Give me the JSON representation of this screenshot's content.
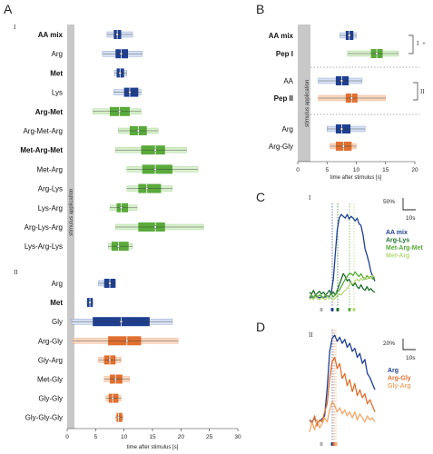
{
  "colors": {
    "blue": "#1f3f8f",
    "blue_light": "#d6e2f5",
    "green": "#5aaa3c",
    "green_light": "#d8f0cc",
    "orange": "#e07030",
    "orange_light": "#fad8c0",
    "stim": "#c8c8c8"
  },
  "panel_letters": [
    "A",
    "B",
    "C",
    "D"
  ],
  "chart_data": [
    {
      "id": "A",
      "type": "box",
      "section_I_label": "I",
      "section_II_label": "II",
      "stimulus_label": "stimulus application",
      "xlabel": "time after stimulus [s]",
      "xlim": [
        0,
        30
      ],
      "xticks": [
        "0",
        "5",
        "10",
        "15",
        "20",
        "25",
        "30"
      ],
      "rows": [
        {
          "label": "AA mix",
          "bold": true,
          "color": "blue",
          "section": "I",
          "median": 8.8,
          "q1": 8.2,
          "q3": 9.5,
          "wlo": 7.0,
          "whi": 11.5
        },
        {
          "label": "Arg",
          "bold": false,
          "color": "blue",
          "section": "I",
          "median": 9.5,
          "q1": 8.5,
          "q3": 10.7,
          "wlo": 6.2,
          "whi": 13.2
        },
        {
          "label": "Met",
          "bold": true,
          "color": "blue",
          "section": "I",
          "median": 9.3,
          "q1": 8.7,
          "q3": 10.0,
          "wlo": 8.3,
          "whi": 10.5
        },
        {
          "label": "Lys",
          "bold": false,
          "color": "blue",
          "section": "I",
          "median": 11.0,
          "q1": 10.0,
          "q3": 12.5,
          "wlo": 8.2,
          "whi": 13.0
        },
        {
          "label": "Arg-Met",
          "bold": true,
          "color": "green",
          "section": "I",
          "median": 9.2,
          "q1": 7.5,
          "q3": 11.0,
          "wlo": 4.5,
          "whi": 13.0
        },
        {
          "label": "Arg-Met-Arg",
          "bold": false,
          "color": "green",
          "section": "I",
          "median": 12.5,
          "q1": 11.0,
          "q3": 14.0,
          "wlo": 9.0,
          "whi": 16.0
        },
        {
          "label": "Met-Arg-Met",
          "bold": true,
          "color": "green",
          "section": "I",
          "median": 15.5,
          "q1": 13.0,
          "q3": 17.2,
          "wlo": 8.5,
          "whi": 21.0
        },
        {
          "label": "Met-Arg",
          "bold": false,
          "color": "green",
          "section": "I",
          "median": 15.5,
          "q1": 13.2,
          "q3": 18.5,
          "wlo": 10.5,
          "whi": 23.0
        },
        {
          "label": "Arg-Lys",
          "bold": false,
          "color": "green",
          "section": "I",
          "median": 14.0,
          "q1": 12.5,
          "q3": 16.5,
          "wlo": 10.5,
          "whi": 18.5
        },
        {
          "label": "Lys-Arg",
          "bold": false,
          "color": "green",
          "section": "I",
          "median": 9.5,
          "q1": 8.7,
          "q3": 10.7,
          "wlo": 7.5,
          "whi": 12.3
        },
        {
          "label": "Arg-Lys-Arg",
          "bold": false,
          "color": "green",
          "section": "I",
          "median": 15.5,
          "q1": 12.5,
          "q3": 17.2,
          "wlo": 8.5,
          "whi": 24.0
        },
        {
          "label": "Lys-Arg-Lys",
          "bold": false,
          "color": "green",
          "section": "I",
          "median": 9.0,
          "q1": 7.8,
          "q3": 10.8,
          "wlo": 7.2,
          "whi": 11.5
        },
        {
          "label": "Arg",
          "bold": false,
          "color": "blue",
          "section": "II",
          "median": 7.5,
          "q1": 6.5,
          "q3": 8.5,
          "wlo": 5.5,
          "whi": 8.5
        },
        {
          "label": "Met",
          "bold": true,
          "color": "blue",
          "section": "II",
          "median": 4.0,
          "q1": 3.5,
          "q3": 4.5,
          "wlo": 3.5,
          "whi": 4.5
        },
        {
          "label": "Gly",
          "bold": false,
          "color": "blue",
          "section": "II",
          "median": 9.5,
          "q1": 4.5,
          "q3": 14.5,
          "wlo": 0.8,
          "whi": 18.5
        },
        {
          "label": "Arg-Gly",
          "bold": false,
          "color": "orange",
          "section": "II",
          "median": 10.5,
          "q1": 7.2,
          "q3": 13.0,
          "wlo": 1.0,
          "whi": 19.5
        },
        {
          "label": "Gly-Arg",
          "bold": false,
          "color": "orange",
          "section": "II",
          "median": 7.5,
          "q1": 6.5,
          "q3": 8.5,
          "wlo": 5.5,
          "whi": 9.5
        },
        {
          "label": "Met-Gly",
          "bold": false,
          "color": "orange",
          "section": "II",
          "median": 8.5,
          "q1": 7.5,
          "q3": 9.7,
          "wlo": 6.5,
          "whi": 11.0
        },
        {
          "label": "Gly-Gly",
          "bold": false,
          "color": "orange",
          "section": "II",
          "median": 8.0,
          "q1": 7.3,
          "q3": 9.0,
          "wlo": 6.8,
          "whi": 9.5
        },
        {
          "label": "Gly-Gly-Gly",
          "bold": false,
          "color": "orange",
          "section": "II",
          "median": 9.0,
          "q1": 8.7,
          "q3": 9.7,
          "wlo": 8.5,
          "whi": 9.8
        }
      ]
    },
    {
      "id": "B",
      "type": "box",
      "stimulus_label": "stimulus application",
      "xlabel": "time after stimulus [s]",
      "xlim": [
        0,
        20
      ],
      "xticks": [
        "0",
        "5",
        "10",
        "15",
        "20"
      ],
      "bracket_labels": [
        "I",
        "+",
        "II"
      ],
      "rows": [
        {
          "label": "AA mix",
          "bold": true,
          "color": "blue",
          "median": 8.8,
          "q1": 8.2,
          "q3": 9.5,
          "wlo": 7.2,
          "whi": 10.0
        },
        {
          "label": "Pep I",
          "bold": true,
          "color": "green",
          "median": 13.5,
          "q1": 12.5,
          "q3": 14.5,
          "wlo": 8.5,
          "whi": 17.2
        },
        {
          "label": "AA",
          "bold": false,
          "color": "blue",
          "median": 7.5,
          "q1": 6.5,
          "q3": 8.7,
          "wlo": 3.5,
          "whi": 11.0
        },
        {
          "label": "Pep II",
          "bold": true,
          "color": "orange",
          "median": 9.2,
          "q1": 8.2,
          "q3": 10.2,
          "wlo": 3.5,
          "whi": 15.0
        },
        {
          "label": "Arg",
          "bold": false,
          "color": "blue",
          "median": 7.5,
          "q1": 6.5,
          "q3": 9.0,
          "wlo": 5.0,
          "whi": 11.5
        },
        {
          "label": "Arg-Gly",
          "bold": false,
          "color": "orange",
          "median": 7.8,
          "q1": 6.5,
          "q3": 9.2,
          "wlo": 5.5,
          "whi": 10.0
        }
      ]
    },
    {
      "id": "C",
      "type": "line",
      "section_label": "I",
      "scale_y": "50%",
      "scale_x": "10s",
      "series": [
        {
          "name": "AA mix",
          "color": "#1f3f8f",
          "y": [
            2,
            3,
            2,
            4,
            3,
            2,
            3,
            2,
            3,
            4,
            3,
            8,
            22,
            50,
            75,
            88,
            92,
            90,
            88,
            92,
            87,
            90,
            88,
            85,
            88,
            82,
            80,
            70,
            55,
            48,
            40,
            30,
            25,
            20
          ]
        },
        {
          "name": "Arg-Lys",
          "color": "#1f6e2a",
          "y": [
            8,
            6,
            10,
            5,
            7,
            9,
            6,
            8,
            5,
            7,
            10,
            6,
            8,
            5,
            10,
            16,
            22,
            28,
            25,
            20,
            22,
            18,
            15,
            18,
            14,
            12,
            16,
            12,
            10,
            14,
            10,
            12,
            9,
            8
          ]
        },
        {
          "name": "Met-Arg-Met",
          "color": "#5aaa3c",
          "y": [
            3,
            5,
            2,
            6,
            3,
            5,
            4,
            2,
            5,
            3,
            4,
            6,
            3,
            5,
            8,
            10,
            14,
            18,
            22,
            25,
            28,
            28,
            26,
            30,
            27,
            25,
            28,
            24,
            22,
            26,
            23,
            25,
            22,
            24
          ]
        },
        {
          "name": "Met-Arg",
          "color": "#b6d97a",
          "y": [
            0,
            2,
            0,
            3,
            1,
            0,
            2,
            1,
            0,
            3,
            1,
            2,
            0,
            2,
            4,
            6,
            5,
            8,
            10,
            12,
            15,
            18,
            17,
            20,
            22,
            20,
            23,
            21,
            24,
            22,
            25,
            23,
            26,
            24
          ]
        }
      ]
    },
    {
      "id": "D",
      "type": "line",
      "section_label": "II",
      "scale_y": "20%",
      "scale_x": "10s",
      "series": [
        {
          "name": "Arg",
          "color": "#1f3f8f",
          "y": [
            14,
            12,
            16,
            10,
            13,
            15,
            18,
            45,
            82,
            95,
            98,
            92,
            96,
            90,
            94,
            86,
            90,
            82,
            85,
            76,
            80,
            70,
            74,
            60,
            56,
            50,
            44
          ]
        },
        {
          "name": "Arg-Gly",
          "color": "#e07030",
          "y": [
            14,
            10,
            18,
            8,
            14,
            12,
            22,
            30,
            55,
            72,
            76,
            65,
            70,
            55,
            60,
            48,
            54,
            42,
            50,
            38,
            44,
            36,
            40,
            30,
            34,
            28,
            22
          ]
        },
        {
          "name": "Gly-Arg",
          "color": "#f2a869",
          "y": [
            2,
            12,
            4,
            14,
            6,
            10,
            16,
            12,
            24,
            32,
            28,
            22,
            26,
            20,
            24,
            18,
            22,
            16,
            22,
            14,
            20,
            16,
            12,
            18,
            14,
            16,
            12
          ]
        }
      ]
    }
  ]
}
